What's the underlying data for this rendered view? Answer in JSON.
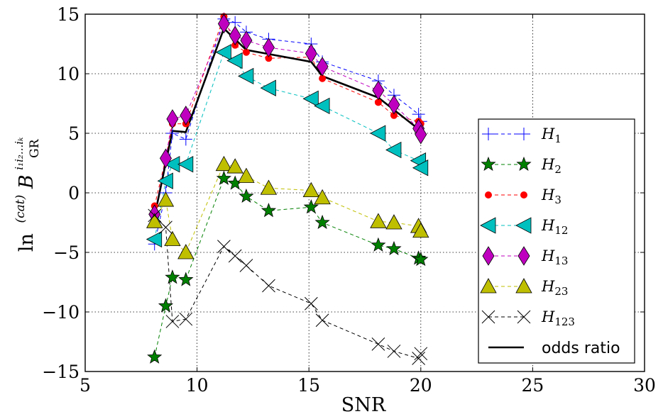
{
  "chart_data": {
    "type": "line",
    "title": "",
    "xlabel": "SNR",
    "ylabel": "ln ⁽ᶜᵃᵗ⁾ B_GR^{i1 i2 ... ik}",
    "ylabel_parts": {
      "ln": "ln",
      "sup": "(cat)",
      "B": "B",
      "sub": "GR",
      "idx": "i₁i₂...iₖ"
    },
    "xlim": [
      5,
      30
    ],
    "ylim": [
      -15,
      15
    ],
    "xticks": [
      5,
      10,
      15,
      20,
      25,
      30
    ],
    "yticks": [
      -15,
      -10,
      -5,
      0,
      5,
      10,
      15
    ],
    "xtick_labels": [
      "5",
      "10",
      "15",
      "20",
      "25",
      "30"
    ],
    "ytick_labels": [
      "−15",
      "−10",
      "−5",
      "0",
      "5",
      "10",
      "15"
    ],
    "grid": true,
    "legend_position": "lower-right",
    "series": [
      {
        "name": "H1",
        "label_base": "H",
        "label_sub": "1",
        "color": "#0000ff",
        "marker": "plus",
        "x": [
          8.1,
          8.6,
          8.9,
          9.5,
          11.2,
          11.7,
          12.2,
          13.2,
          15.1,
          15.6,
          18.1,
          18.8,
          19.9,
          20.0
        ],
        "y": [
          -4.3,
          0.0,
          5.0,
          4.5,
          14.6,
          14.3,
          13.5,
          12.9,
          12.5,
          11.0,
          9.4,
          8.2,
          6.6,
          6.0
        ]
      },
      {
        "name": "H2",
        "label_base": "H",
        "label_sub": "2",
        "color": "#008000",
        "marker": "star",
        "x": [
          8.1,
          8.6,
          8.9,
          9.5,
          11.2,
          11.7,
          12.2,
          13.2,
          15.1,
          15.6,
          18.1,
          18.8,
          19.9,
          20.0
        ],
        "y": [
          -13.8,
          -9.5,
          -7.1,
          -7.3,
          1.2,
          0.8,
          -0.3,
          -1.5,
          -1.2,
          -2.5,
          -4.4,
          -4.7,
          -5.5,
          -5.6
        ]
      },
      {
        "name": "H3",
        "label_base": "H",
        "label_sub": "3",
        "color": "#ff0000",
        "marker": "circle",
        "x": [
          8.1,
          8.6,
          8.9,
          9.5,
          11.2,
          11.7,
          12.2,
          13.2,
          15.1,
          15.6,
          18.1,
          18.8,
          19.9,
          20.0
        ],
        "y": [
          -1.1,
          2.9,
          5.8,
          5.8,
          14.8,
          12.4,
          11.8,
          11.3,
          11.4,
          9.6,
          7.6,
          6.5,
          6.0,
          5.8
        ]
      },
      {
        "name": "H12",
        "label_base": "H",
        "label_sub": "12",
        "color": "#00bfbf",
        "marker": "triangle-left",
        "x": [
          8.1,
          8.6,
          8.9,
          9.5,
          11.2,
          11.7,
          12.2,
          13.2,
          15.1,
          15.6,
          18.1,
          18.8,
          19.9,
          20.0
        ],
        "y": [
          -3.9,
          1.0,
          2.4,
          2.4,
          11.8,
          11.1,
          9.8,
          8.8,
          7.9,
          7.3,
          5.0,
          3.6,
          2.7,
          2.1
        ]
      },
      {
        "name": "H13",
        "label_base": "H",
        "label_sub": "13",
        "color": "#bf00bf",
        "marker": "diamond",
        "x": [
          8.1,
          8.6,
          8.9,
          9.5,
          11.2,
          11.7,
          12.2,
          13.2,
          15.1,
          15.6,
          18.1,
          18.8,
          19.9,
          20.0
        ],
        "y": [
          -1.8,
          2.9,
          6.2,
          6.5,
          14.2,
          13.2,
          12.8,
          12.2,
          11.7,
          10.6,
          8.6,
          7.4,
          5.4,
          4.9
        ]
      },
      {
        "name": "H23",
        "label_base": "H",
        "label_sub": "23",
        "color": "#bfbf00",
        "marker": "triangle-up",
        "x": [
          8.1,
          8.6,
          8.9,
          9.5,
          11.2,
          11.7,
          12.2,
          13.2,
          15.1,
          15.6,
          18.1,
          18.8,
          19.9,
          20.0
        ],
        "y": [
          -2.4,
          -0.6,
          -3.9,
          -5.0,
          2.4,
          2.2,
          1.4,
          0.4,
          0.2,
          -0.4,
          -2.4,
          -2.5,
          -2.8,
          -3.2
        ]
      },
      {
        "name": "H123",
        "label_base": "H",
        "label_sub": "123",
        "color": "#000000",
        "marker": "x",
        "x": [
          8.1,
          8.6,
          8.9,
          9.5,
          11.2,
          11.7,
          12.2,
          13.2,
          15.1,
          15.6,
          18.1,
          18.8,
          19.9,
          20.0
        ],
        "y": [
          -1.9,
          -2.9,
          -10.8,
          -10.6,
          -4.5,
          -5.3,
          -6.1,
          -7.8,
          -9.3,
          -10.7,
          -12.7,
          -13.3,
          -13.9,
          -13.5
        ]
      }
    ],
    "odds_ratio": {
      "name": "odds ratio",
      "color": "#000000",
      "x": [
        8.1,
        8.9,
        9.5,
        11.2,
        12.2,
        15.1,
        15.6,
        18.1,
        20.0
      ],
      "y": [
        -2.0,
        5.2,
        5.1,
        13.8,
        12.0,
        11.0,
        9.8,
        8.0,
        5.2
      ]
    }
  }
}
